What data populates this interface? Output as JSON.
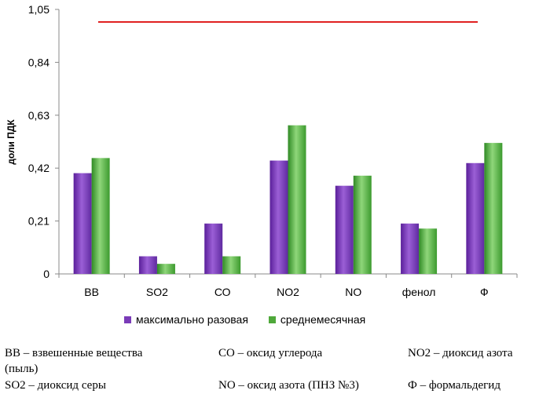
{
  "chart_data": {
    "type": "bar",
    "ylabel": "доли ПДК",
    "ylim": [
      0,
      1.05
    ],
    "yticks": [
      "0",
      "0,21",
      "0,42",
      "0,63",
      "0,84",
      "1,05"
    ],
    "categories": [
      "ВВ",
      "SO2",
      "СО",
      "NO2",
      "NO",
      "фенол",
      "Ф"
    ],
    "series": [
      {
        "name": "максимально разовая",
        "color": "#7a3bb8",
        "values": [
          0.4,
          0.07,
          0.2,
          0.45,
          0.35,
          0.2,
          0.44
        ]
      },
      {
        "name": "среднемесячная",
        "color": "#4fa83a",
        "values": [
          0.46,
          0.04,
          0.07,
          0.59,
          0.39,
          0.18,
          0.52
        ]
      }
    ],
    "reference_line": {
      "value": 1.0,
      "color": "#e02020"
    },
    "grid": false,
    "legend_position": "bottom"
  },
  "notes": {
    "row1": {
      "col1": "ВВ – взвешенные вещества",
      "col1b": "(пыль)",
      "col2": "СО – оксид углерода",
      "col3": "NO2 – диоксид азота"
    },
    "row2": {
      "col1": "SO2 – диоксид серы",
      "col2": "NO – оксид азота (ПНЗ №3)",
      "col3": "Ф – формальдегид"
    }
  }
}
